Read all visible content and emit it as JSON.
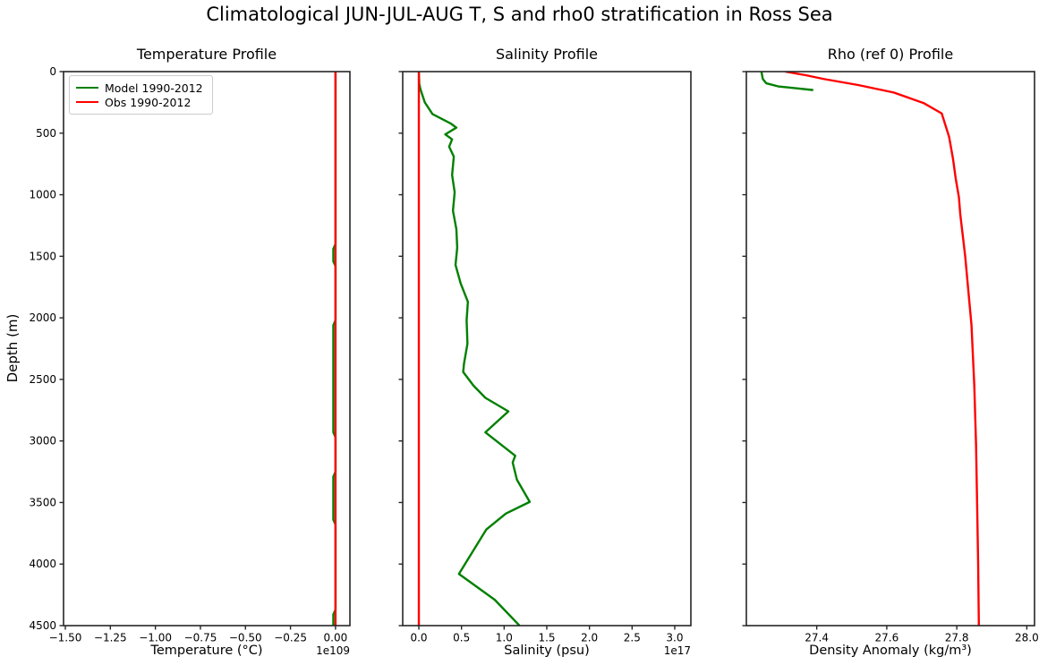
{
  "figure": {
    "suptitle": "Climatological JUN-JUL-AUG T, S and rho0 stratification in Ross Sea",
    "ylabel": "Depth (m)",
    "background": "#ffffff",
    "axis_color": "#262626",
    "text_color": "#000000"
  },
  "legend": {
    "items": [
      {
        "label": "Model 1990-2012",
        "color": "#008000"
      },
      {
        "label": "Obs 1990-2012",
        "color": "#ff0000"
      }
    ]
  },
  "y_axis": {
    "label": "Depth (m)",
    "ticks": [
      0,
      500,
      1000,
      1500,
      2000,
      2500,
      3000,
      3500,
      4000,
      4500
    ],
    "range": [
      0,
      4500
    ],
    "inverted": true
  },
  "chart_data": [
    {
      "type": "line",
      "title": "Temperature Profile",
      "xlabel": "Temperature (°C)",
      "offset_text": "1e109",
      "xlim": [
        -1.51,
        0.08
      ],
      "ylim": [
        0,
        4500
      ],
      "x_ticks": [
        -1.5,
        -1.25,
        -1.0,
        -0.75,
        -0.5,
        -0.25,
        0.0
      ],
      "x_tick_labels": [
        "−1.50",
        "−1.25",
        "−1.00",
        "−0.75",
        "−0.50",
        "−0.25",
        "0.00"
      ],
      "grid": false,
      "note": "Model values appear as ~0 on the 1e109 scale, almost entirely hidden behind the Obs line; green slivers visible near 1500 m, 2100-2900 m, 3300-3650 m and the bottom.",
      "series": [
        {
          "name": "Model 1990-2012",
          "color": "#008000",
          "depth": [
            0,
            1400,
            1440,
            1540,
            1580,
            2020,
            2060,
            2930,
            2970,
            3250,
            3290,
            3640,
            3680,
            4370,
            4410,
            4500
          ],
          "x": [
            0,
            0,
            -0.012,
            -0.012,
            0,
            0,
            -0.012,
            -0.012,
            0,
            0,
            -0.012,
            -0.012,
            0,
            0,
            -0.012,
            -0.012
          ]
        },
        {
          "name": "Obs 1990-2012",
          "color": "#ff0000",
          "depth": [
            0,
            4500
          ],
          "x": [
            0.0,
            0.0
          ]
        }
      ]
    },
    {
      "type": "line",
      "title": "Salinity Profile",
      "xlabel": "Salinity (psu)",
      "offset_text": "1e17",
      "xlim": [
        -0.189,
        3.189
      ],
      "ylim": [
        0,
        4500
      ],
      "x_ticks": [
        0.0,
        0.5,
        1.0,
        1.5,
        2.0,
        2.5,
        3.0
      ],
      "x_tick_labels": [
        "0.0",
        "0.5",
        "1.0",
        "1.5",
        "2.0",
        "2.5",
        "3.0"
      ],
      "grid": false,
      "note": "Obs line is vertical at ~0 on the 1e17 scale; model salinity drifts right with depth, values in units of 1e17 psu.",
      "series": [
        {
          "name": "Model 1990-2012",
          "color": "#008000",
          "depth": [
            0,
            100,
            145,
            250,
            345,
            420,
            455,
            510,
            550,
            610,
            690,
            840,
            980,
            1130,
            1280,
            1430,
            1570,
            1720,
            1870,
            2020,
            2210,
            2370,
            2440,
            2550,
            2650,
            2760,
            2930,
            3120,
            3175,
            3315,
            3495,
            3590,
            3720,
            4080,
            4290,
            4500
          ],
          "x": [
            0.0,
            0.005,
            0.02,
            0.07,
            0.16,
            0.37,
            0.44,
            0.31,
            0.39,
            0.355,
            0.41,
            0.39,
            0.42,
            0.4,
            0.44,
            0.45,
            0.43,
            0.49,
            0.575,
            0.56,
            0.57,
            0.53,
            0.52,
            0.64,
            0.78,
            1.05,
            0.78,
            1.13,
            1.1,
            1.15,
            1.3,
            1.02,
            0.79,
            0.47,
            0.89,
            1.18
          ]
        },
        {
          "name": "Obs 1990-2012",
          "color": "#ff0000",
          "depth": [
            0,
            4500
          ],
          "x": [
            0.0,
            0.0
          ]
        }
      ]
    },
    {
      "type": "line",
      "title": "Rho (ref 0) Profile",
      "xlabel": "Density Anomaly (kg/m³)",
      "offset_text": "",
      "xlim": [
        27.199,
        28.022
      ],
      "ylim": [
        0,
        4500
      ],
      "x_ticks": [
        27.4,
        27.6,
        27.8,
        28.0
      ],
      "x_tick_labels": [
        "27.4",
        "27.6",
        "27.8",
        "28.0"
      ],
      "grid": false,
      "note": "Obs curve increases from ~27.31 at surface to ~27.86 at bottom; model curve only spans ~0-150 m (27.24 to 27.39) then stops.",
      "series": [
        {
          "name": "Model 1990-2012",
          "color": "#008000",
          "depth": [
            0,
            60,
            95,
            120,
            135,
            150
          ],
          "x": [
            27.242,
            27.246,
            27.256,
            27.29,
            27.34,
            27.39
          ]
        },
        {
          "name": "Obs 1990-2012",
          "color": "#ff0000",
          "depth": [
            0,
            30,
            60,
            110,
            170,
            255,
            340,
            530,
            705,
            870,
            1020,
            1160,
            1500,
            2060,
            2550,
            3030,
            3500,
            4000,
            4500
          ],
          "x": [
            27.31,
            27.37,
            27.42,
            27.52,
            27.62,
            27.705,
            27.757,
            27.778,
            27.789,
            27.797,
            27.806,
            27.81,
            27.824,
            27.842,
            27.85,
            27.855,
            27.858,
            27.861,
            27.863
          ]
        }
      ]
    }
  ]
}
